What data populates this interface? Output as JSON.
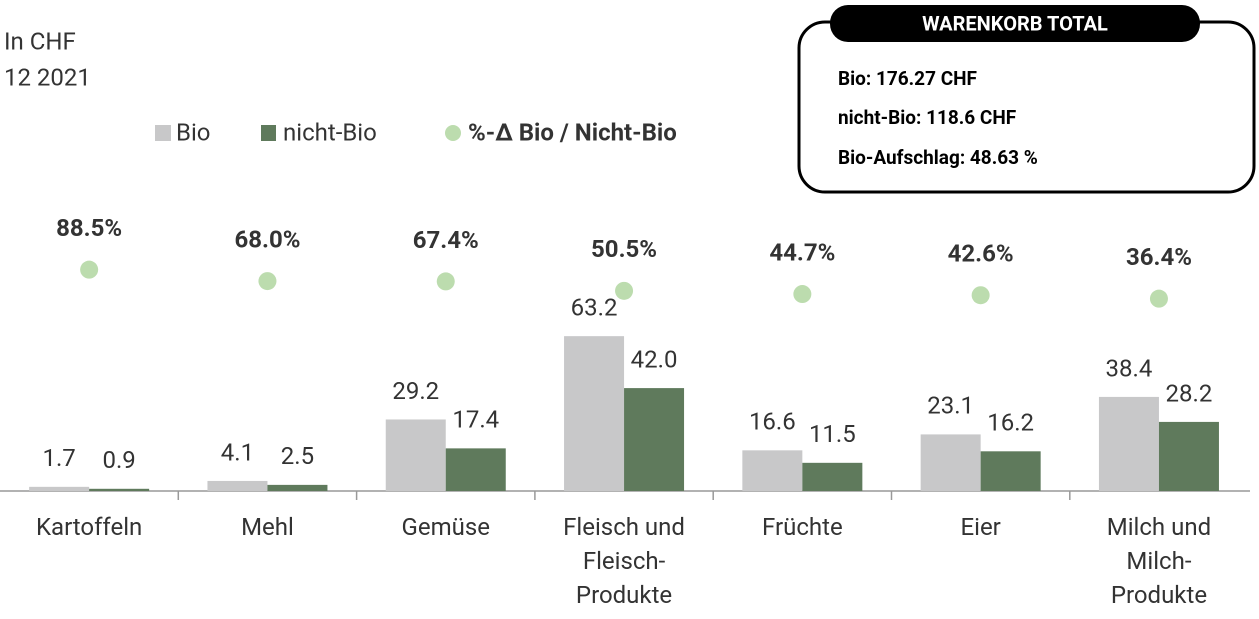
{
  "chart_data": {
    "type": "bar",
    "subtitle": [
      "In CHF",
      "12 2021"
    ],
    "categories": [
      "Kartoffeln",
      "Mehl",
      "Gemüse",
      "Fleisch und Fleisch-Produkte",
      "Früchte",
      "Eier",
      "Milch und Milch-Produkte"
    ],
    "series": [
      {
        "name": "Bio",
        "color": "#c8c8c9",
        "values": [
          1.7,
          4.1,
          29.2,
          63.2,
          16.6,
          23.1,
          38.4
        ]
      },
      {
        "name": "nicht-Bio",
        "color": "#5f7a5c",
        "values": [
          0.9,
          2.5,
          17.4,
          42.0,
          11.5,
          16.2,
          28.2
        ],
        "value_labels": [
          "0.9",
          "2.5",
          "17.4",
          "42.0",
          "11.5",
          "16.2",
          "28.2"
        ]
      },
      {
        "name": "%-Δ Bio / Nicht-Bio",
        "type": "scatter",
        "axis": "y2",
        "color": "#bcdcae",
        "values": [
          88.5,
          68.0,
          67.4,
          50.5,
          44.7,
          42.6,
          36.4
        ],
        "value_labels": [
          "88.5%",
          "68.0%",
          "67.4%",
          "50.5%",
          "44.7%",
          "42.6%",
          "36.4%"
        ]
      }
    ],
    "ylim": [
      0,
      200
    ],
    "y2lim": [
      -309,
      571
    ],
    "annotations": {
      "title": "WARENKORB TOTAL",
      "lines": [
        "Bio: 176.27 CHF",
        "nicht-Bio: 118.6 CHF",
        "Bio-Aufschlag: 48.63 %"
      ]
    }
  }
}
